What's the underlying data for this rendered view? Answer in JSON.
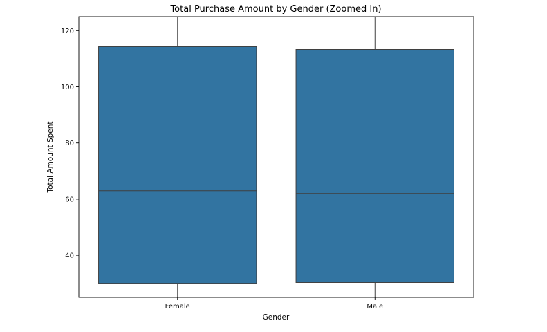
{
  "chart_data": {
    "type": "box",
    "title": "Total Purchase Amount by Gender (Zoomed In)",
    "xlabel": "Gender",
    "ylabel": "Total Amount Spent",
    "categories": [
      "Female",
      "Male"
    ],
    "boxes": [
      {
        "category": "Female",
        "q1": 30.0,
        "median": 63.0,
        "q3": 114.3,
        "whisker_low": 25,
        "whisker_high": 125
      },
      {
        "category": "Male",
        "q1": 30.3,
        "median": 62.0,
        "q3": 113.3,
        "whisker_low": 25,
        "whisker_high": 125
      }
    ],
    "ylim": [
      25,
      125
    ],
    "yticks": [
      40,
      60,
      80,
      100,
      120
    ],
    "color": "#3274a1",
    "edge_color": "#3f3f3f",
    "grid": false,
    "legend": "none"
  }
}
